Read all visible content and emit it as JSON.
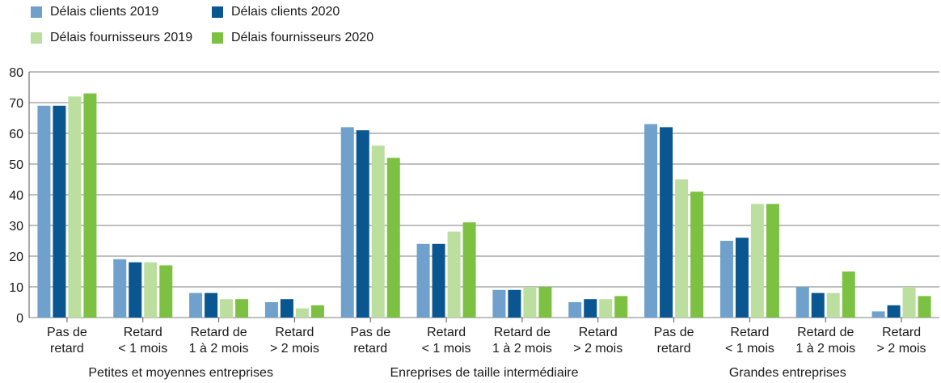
{
  "chart_data": {
    "type": "bar",
    "title": "",
    "xlabel": "",
    "ylabel": "",
    "ylim": [
      0,
      80
    ],
    "yticks": [
      0,
      10,
      20,
      30,
      40,
      50,
      60,
      70,
      80
    ],
    "grid": true,
    "legend_position": "top-left",
    "groups": [
      {
        "label": "Petites et moyennes entreprises",
        "categories": [
          [
            "Pas de",
            "retard"
          ],
          [
            "Retard",
            "< 1 mois"
          ],
          [
            "Retard de",
            "1 à 2 mois"
          ],
          [
            "Retard",
            "> 2 mois"
          ]
        ]
      },
      {
        "label": "Enreprises de taille intermédiaire",
        "categories": [
          [
            "Pas de",
            "retard"
          ],
          [
            "Retard",
            "< 1 mois"
          ],
          [
            "Retard de",
            "1 à 2 mois"
          ],
          [
            "Retard",
            "> 2 mois"
          ]
        ]
      },
      {
        "label": "Grandes entreprises",
        "categories": [
          [
            "Pas de",
            "retard"
          ],
          [
            "Retard",
            "< 1 mois"
          ],
          [
            "Retard de",
            "1 à 2 mois"
          ],
          [
            "Retard",
            "> 2 mois"
          ]
        ]
      }
    ],
    "series": [
      {
        "name": "Délais clients 2019",
        "color": "#6fa1cc",
        "values": [
          69,
          19,
          8,
          5,
          62,
          24,
          9,
          5,
          63,
          25,
          10,
          2
        ]
      },
      {
        "name": "Délais clients 2020",
        "color": "#0a5690",
        "values": [
          69,
          18,
          8,
          6,
          61,
          24,
          9,
          6,
          62,
          26,
          8,
          4
        ]
      },
      {
        "name": "Délais fournisseurs 2019",
        "color": "#bcdfa0",
        "values": [
          72,
          18,
          6,
          3,
          56,
          28,
          10,
          6,
          45,
          37,
          8,
          10
        ]
      },
      {
        "name": "Délais fournisseurs 2020",
        "color": "#7cc141",
        "values": [
          73,
          17,
          6,
          4,
          52,
          31,
          10,
          7,
          41,
          37,
          15,
          7
        ]
      }
    ]
  }
}
